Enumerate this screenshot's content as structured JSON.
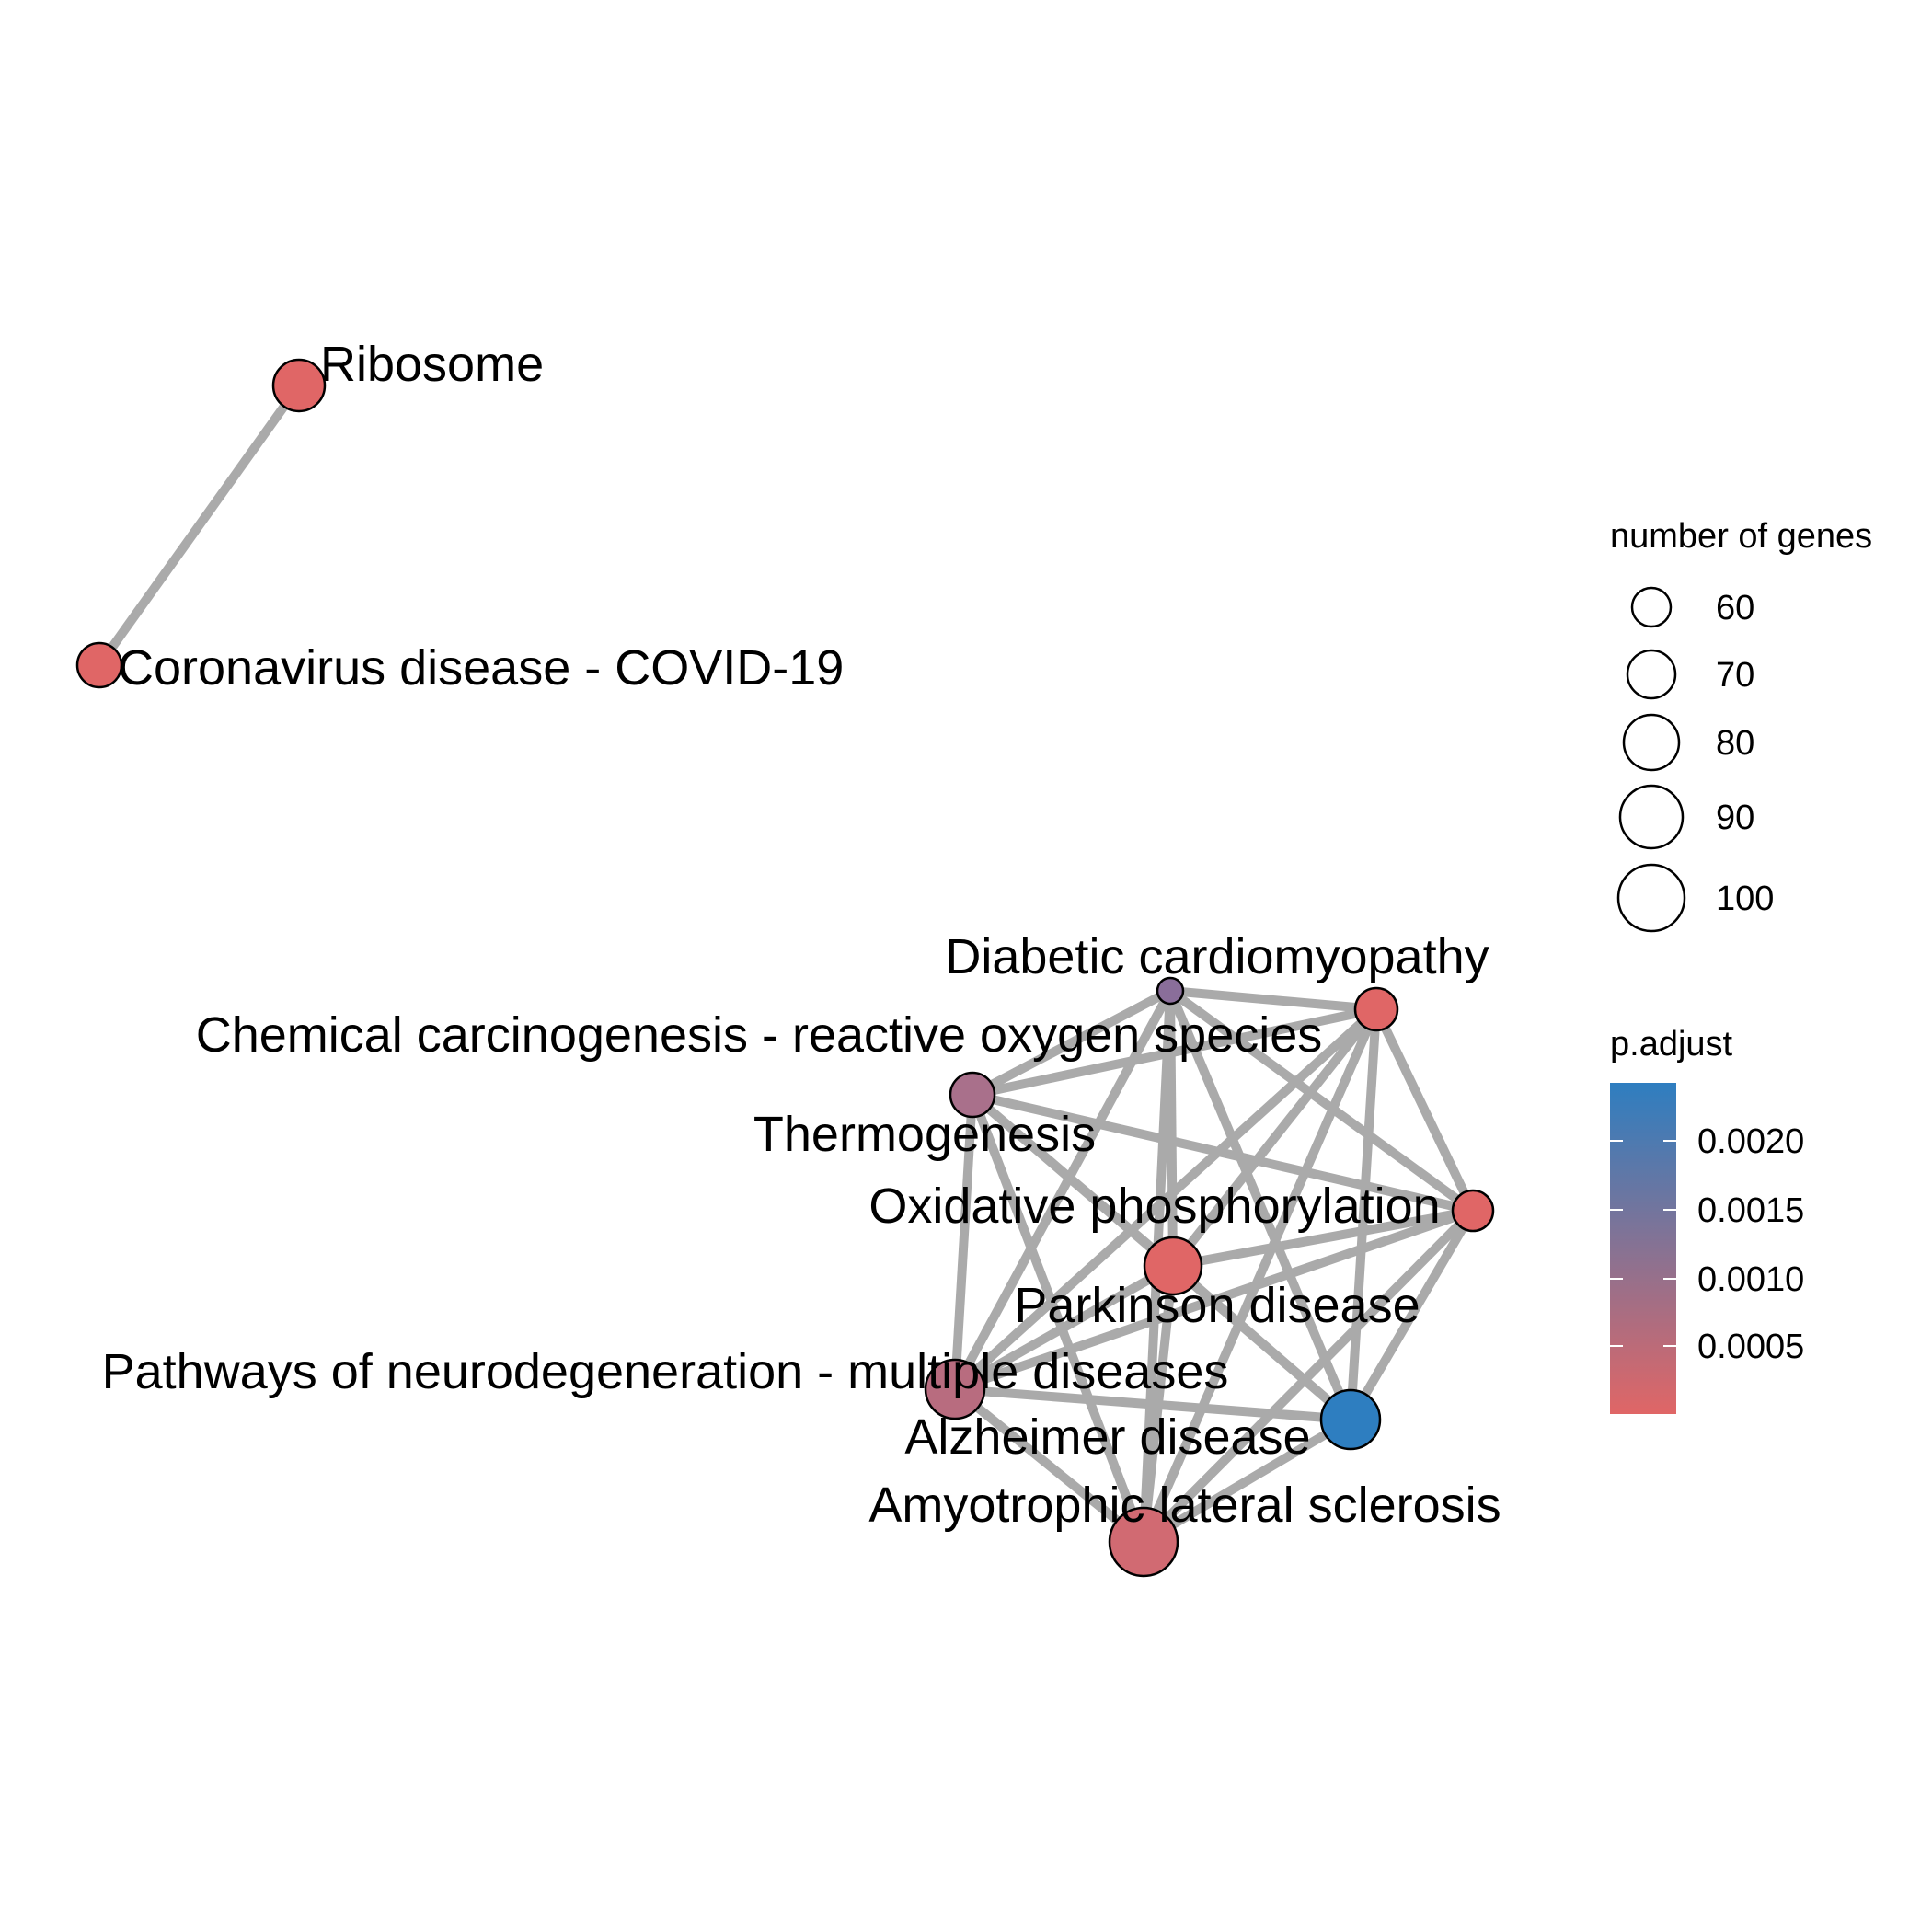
{
  "network": {
    "nodes": [
      {
        "id": "ribosome",
        "label": "Ribosome",
        "color": "#E06666"
      },
      {
        "id": "covid",
        "label": "Coronavirus disease - COVID-19",
        "color": "#E06666"
      },
      {
        "id": "diabetic",
        "label": "Diabetic cardiomyopathy",
        "color": "#8A6E9A"
      },
      {
        "id": "chemical",
        "label": "Chemical carcinogenesis - reactive oxygen species",
        "color": "#E06666"
      },
      {
        "id": "thermo",
        "label": "Thermogenesis",
        "color": "#A9708B"
      },
      {
        "id": "oxidative",
        "label": "Oxidative phosphorylation",
        "color": "#E06666"
      },
      {
        "id": "parkinson",
        "label": "Parkinson disease",
        "color": "#E06666"
      },
      {
        "id": "neurodeg",
        "label": "Pathways of neurodegeneration - multiple diseases",
        "color": "#B86C7F"
      },
      {
        "id": "alzheimer",
        "label": "Alzheimer disease",
        "color": "#2E7EC0"
      },
      {
        "id": "als",
        "label": "Amyotrophic lateral sclerosis",
        "color": "#D16A72"
      }
    ],
    "edges": [
      [
        "ribosome",
        "covid"
      ],
      [
        "diabetic",
        "chemical"
      ],
      [
        "diabetic",
        "thermo"
      ],
      [
        "diabetic",
        "parkinson"
      ],
      [
        "diabetic",
        "oxidative"
      ],
      [
        "diabetic",
        "alzheimer"
      ],
      [
        "diabetic",
        "als"
      ],
      [
        "diabetic",
        "neurodeg"
      ],
      [
        "chemical",
        "thermo"
      ],
      [
        "chemical",
        "parkinson"
      ],
      [
        "chemical",
        "neurodeg"
      ],
      [
        "chemical",
        "alzheimer"
      ],
      [
        "chemical",
        "als"
      ],
      [
        "chemical",
        "oxidative"
      ],
      [
        "thermo",
        "oxidative"
      ],
      [
        "thermo",
        "parkinson"
      ],
      [
        "thermo",
        "neurodeg"
      ],
      [
        "thermo",
        "alzheimer"
      ],
      [
        "thermo",
        "als"
      ],
      [
        "oxidative",
        "parkinson"
      ],
      [
        "oxidative",
        "neurodeg"
      ],
      [
        "oxidative",
        "alzheimer"
      ],
      [
        "oxidative",
        "als"
      ],
      [
        "parkinson",
        "neurodeg"
      ],
      [
        "parkinson",
        "alzheimer"
      ],
      [
        "parkinson",
        "als"
      ],
      [
        "neurodeg",
        "alzheimer"
      ],
      [
        "neurodeg",
        "als"
      ],
      [
        "alzheimer",
        "als"
      ]
    ],
    "edge_color": "#AAAAAA",
    "node_stroke": "#000000"
  },
  "legend_size": {
    "title": "number of genes",
    "items": [
      "60",
      "70",
      "80",
      "90",
      "100"
    ]
  },
  "legend_color": {
    "title": "p.adjust",
    "ticks": [
      "0.0020",
      "0.0015",
      "0.0010",
      "0.0005"
    ],
    "gradient_low": "#E06666",
    "gradient_high": "#2E7EC0"
  }
}
